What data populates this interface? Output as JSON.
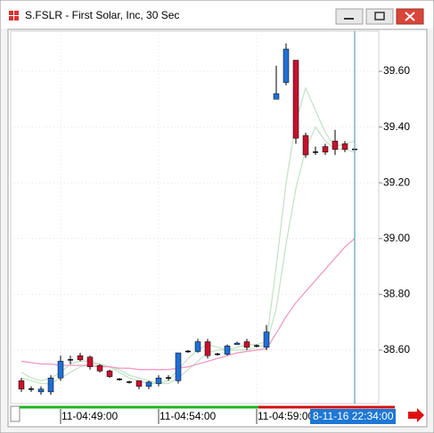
{
  "window_title": "S.FSLR - First Solar, Inc, 30 Sec",
  "chart_data": {
    "type": "candlestick",
    "categories": [
      null,
      null,
      null,
      null,
      "11-04:49:00",
      null,
      null,
      null,
      null,
      null,
      null,
      null,
      null,
      null,
      "11-04:54:00",
      null,
      null,
      null,
      null,
      null,
      null,
      null,
      null,
      null,
      "11-04:59:00",
      null,
      null,
      null,
      null,
      null,
      null,
      null,
      null,
      null,
      null
    ],
    "open": [
      38.49,
      38.46,
      38.45,
      38.45,
      38.5,
      38.565,
      38.58,
      38.575,
      38.545,
      38.525,
      38.495,
      38.485,
      38.49,
      38.47,
      38.48,
      38.5,
      38.49,
      38.595,
      38.595,
      38.63,
      38.585,
      38.585,
      38.62,
      38.63,
      38.615,
      38.61,
      39.5,
      39.56,
      39.64,
      39.37,
      39.31,
      39.33,
      39.35,
      39.34,
      39.32
    ],
    "high": [
      38.5,
      38.47,
      38.47,
      38.51,
      38.58,
      38.58,
      38.59,
      38.58,
      38.55,
      38.53,
      38.5,
      38.49,
      38.49,
      38.49,
      38.51,
      38.51,
      38.59,
      38.6,
      38.64,
      38.64,
      38.59,
      38.62,
      38.63,
      38.64,
      38.62,
      38.69,
      39.62,
      39.7,
      39.64,
      39.38,
      39.33,
      39.34,
      39.39,
      39.35,
      39.33
    ],
    "low": [
      38.45,
      38.45,
      38.44,
      38.44,
      38.49,
      38.55,
      38.56,
      38.53,
      38.52,
      38.5,
      38.49,
      38.48,
      38.46,
      38.46,
      38.47,
      38.49,
      38.48,
      38.59,
      38.59,
      38.57,
      38.58,
      38.58,
      38.62,
      38.6,
      38.61,
      38.6,
      39.5,
      39.55,
      39.34,
      39.29,
      39.3,
      39.3,
      39.3,
      39.31,
      39.31
    ],
    "close": [
      38.46,
      38.46,
      38.46,
      38.5,
      38.56,
      38.565,
      38.565,
      38.54,
      38.525,
      38.505,
      38.495,
      38.485,
      38.47,
      38.485,
      38.5,
      38.5,
      38.59,
      38.595,
      38.63,
      38.58,
      38.585,
      38.615,
      38.625,
      38.61,
      38.615,
      38.665,
      39.52,
      39.68,
      39.36,
      39.3,
      39.31,
      39.31,
      39.32,
      39.32,
      39.32
    ],
    "up_color": "#1f6fd6",
    "down_color": "#c8102e",
    "series": [
      {
        "color": "#c6e3c6",
        "values": [
          38.52,
          38.5,
          38.49,
          38.5,
          38.52,
          38.55,
          38.56,
          38.56,
          38.55,
          38.54,
          38.52,
          38.5,
          38.49,
          38.48,
          38.48,
          38.49,
          38.53,
          38.57,
          38.6,
          38.62,
          38.61,
          38.6,
          38.61,
          38.62,
          38.62,
          38.63,
          38.9,
          39.2,
          39.42,
          39.54,
          39.46,
          39.38,
          39.33,
          39.34,
          39.35
        ]
      },
      {
        "color": "#c6e3c6",
        "values": [
          38.5,
          38.49,
          38.48,
          38.48,
          38.5,
          38.52,
          38.54,
          38.55,
          38.55,
          38.54,
          38.53,
          38.51,
          38.5,
          38.49,
          38.48,
          38.48,
          38.5,
          38.53,
          38.56,
          38.59,
          38.6,
          38.6,
          38.6,
          38.6,
          38.61,
          38.62,
          38.75,
          38.98,
          39.18,
          39.32,
          39.4,
          39.35,
          39.32,
          39.32,
          39.31
        ]
      },
      {
        "color": "#f29ac2",
        "values": [
          38.56,
          38.555,
          38.55,
          38.55,
          38.545,
          38.545,
          38.545,
          38.545,
          38.54,
          38.54,
          38.535,
          38.535,
          38.53,
          38.53,
          38.53,
          38.53,
          38.535,
          38.54,
          38.55,
          38.56,
          38.57,
          38.58,
          38.59,
          38.595,
          38.6,
          38.605,
          38.66,
          38.72,
          38.77,
          38.81,
          38.85,
          38.89,
          38.93,
          38.97,
          39.0
        ]
      }
    ],
    "ylim": [
      38.408,
      39.744
    ],
    "yticks": [
      {
        "value": 38.6,
        "label": "38.60"
      },
      {
        "value": 38.8,
        "label": "38.80"
      },
      {
        "value": 39.0,
        "label": "39.00"
      },
      {
        "value": 39.2,
        "label": "39.20"
      },
      {
        "value": 39.4,
        "label": "39.40"
      },
      {
        "value": 39.6,
        "label": "39.60"
      }
    ],
    "grid": true,
    "cursor_label": "8-11-16 22:34:00"
  }
}
